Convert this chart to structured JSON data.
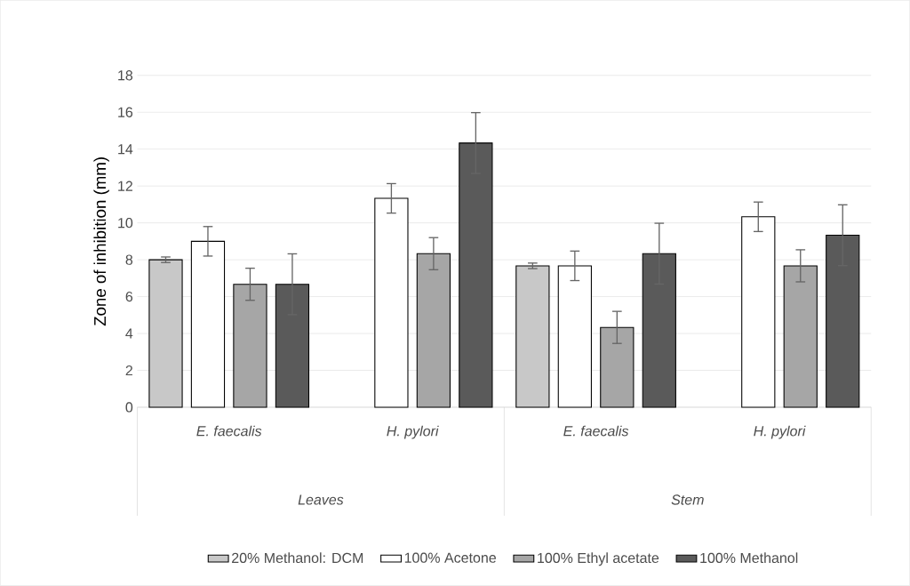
{
  "chart_data": {
    "type": "bar",
    "ylabel": "Zone of inhibition (mm)",
    "categories": [
      "E. faecalis",
      "H. pylori",
      "E. faecalis",
      "H. pylori"
    ],
    "series": [
      {
        "name": "20% Methanol: DCM",
        "color": "#c8c8c8",
        "values": [
          8.0,
          null,
          7.67,
          null
        ],
        "errors": [
          0.15,
          null,
          0.15,
          null
        ]
      },
      {
        "name": "100% Acetone",
        "color": "#ffffff",
        "values": [
          9.0,
          11.33,
          7.67,
          10.33
        ],
        "errors": [
          0.8,
          0.8,
          0.8,
          0.8
        ]
      },
      {
        "name": "100% Ethyl acetate",
        "color": "#a6a6a6",
        "values": [
          6.67,
          8.33,
          4.33,
          7.67
        ],
        "errors": [
          0.87,
          0.87,
          0.87,
          0.87
        ]
      },
      {
        "name": "100% Methanol",
        "color": "#5a5a5a",
        "values": [
          6.67,
          14.33,
          8.33,
          9.33
        ],
        "errors": [
          1.65,
          1.65,
          1.65,
          1.65
        ]
      }
    ],
    "annotations": [
      "Leaves",
      "Stem"
    ],
    "ylim": [
      0,
      18
    ],
    "yticks": [
      0,
      2,
      4,
      6,
      8,
      10,
      12,
      14,
      16,
      18
    ],
    "grid": "y",
    "legend": "bottom"
  }
}
